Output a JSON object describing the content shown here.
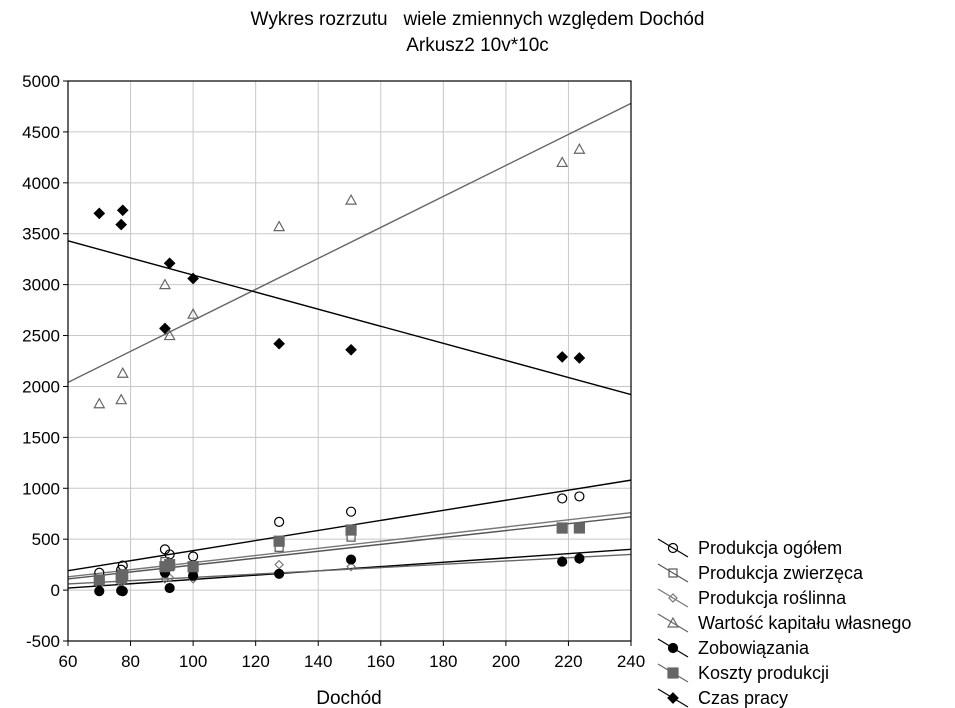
{
  "chart_data": {
    "type": "scatter",
    "title": "Wykres rozrzutu   wiele zmiennych względem Dochód",
    "subtitle": "Arkusz2 10v*10c",
    "xlabel": "Dochód",
    "ylabel": "",
    "xlim": [
      60,
      240
    ],
    "ylim": [
      -500,
      5000
    ],
    "xticks": [
      60,
      80,
      100,
      120,
      140,
      160,
      180,
      200,
      220,
      240
    ],
    "yticks": [
      -500,
      0,
      500,
      1000,
      1500,
      2000,
      2500,
      3000,
      3500,
      4000,
      4500,
      5000
    ],
    "x": [
      70,
      77,
      77.5,
      91,
      92.5,
      100,
      127.5,
      150.5,
      218,
      223.5
    ],
    "grid": true,
    "legend_position": "bottom-right",
    "series": [
      {
        "name": "Produkcja ogółem",
        "marker": "circle-open",
        "color": "#000000",
        "values": [
          170,
          200,
          240,
          400,
          350,
          330,
          670,
          770,
          900,
          920
        ],
        "fit": [
          [
            60,
            190
          ],
          [
            240,
            1080
          ]
        ]
      },
      {
        "name": "Produkcja zwierzęca",
        "marker": "square-open",
        "color": "#555555",
        "values": [
          90,
          110,
          130,
          280,
          230,
          210,
          420,
          520,
          600,
          610
        ],
        "fit": [
          [
            60,
            110
          ],
          [
            240,
            720
          ]
        ]
      },
      {
        "name": "Produkcja roślinna",
        "marker": "diamond-open",
        "color": "#777777",
        "values": [
          50,
          70,
          80,
          110,
          120,
          110,
          250,
          230,
          290,
          300
        ],
        "fit": [
          [
            60,
            130
          ],
          [
            240,
            760
          ]
        ]
      },
      {
        "name": "Wartość kapitału własnego",
        "marker": "triangle-open",
        "color": "#666666",
        "values": [
          1830,
          1870,
          2130,
          3000,
          2500,
          2710,
          3570,
          3830,
          4200,
          4330
        ],
        "fit": [
          [
            60,
            2040
          ],
          [
            240,
            4780
          ]
        ]
      },
      {
        "name": "Zobowiązania",
        "marker": "circle-filled",
        "color": "#000000",
        "values": [
          -10,
          -5,
          -10,
          170,
          20,
          140,
          160,
          300,
          280,
          310
        ],
        "fit": [
          [
            60,
            20
          ],
          [
            240,
            400
          ]
        ]
      },
      {
        "name": "Koszty produkcji",
        "marker": "square-filled",
        "color": "#666666",
        "values": [
          100,
          120,
          150,
          230,
          250,
          230,
          480,
          590,
          610,
          610
        ],
        "fit": [
          [
            60,
            60
          ],
          [
            240,
            350
          ]
        ]
      },
      {
        "name": "Czas pracy",
        "marker": "diamond-filled",
        "color": "#000000",
        "values": [
          3700,
          3590,
          3730,
          2570,
          3210,
          3060,
          2420,
          2360,
          2290,
          2280
        ],
        "fit": [
          [
            60,
            3430
          ],
          [
            240,
            1920
          ]
        ]
      }
    ]
  }
}
